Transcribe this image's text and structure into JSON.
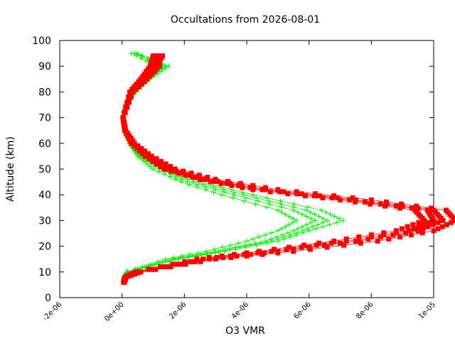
{
  "chart_data": {
    "type": "line",
    "title": "Occultations from 2026-08-01",
    "xlabel": "O3 VMR",
    "ylabel": "Altitude (km)",
    "xlim": [
      -2e-06,
      1e-05
    ],
    "ylim": [
      0,
      100
    ],
    "x_ticks": [
      "-2e-06",
      "0e+00",
      "2e-06",
      "4e-06",
      "6e-06",
      "8e-06",
      "1e-05"
    ],
    "y_ticks": [
      "0",
      "10",
      "20",
      "30",
      "40",
      "50",
      "60",
      "70",
      "80",
      "90",
      "100"
    ],
    "grid": false,
    "series": [
      {
        "marker": "plus",
        "color": "#00ee00",
        "profiles": [
          {
            "x": [
              4e-08,
              6e-08,
              1.5e-07,
              1.6e-06,
              3e-06,
              4.6e-06,
              5.5e-06,
              6.2e-06,
              5.5e-06,
              3.6e-06,
              2.1e-06,
              1.2e-06,
              5.5e-07,
              2.5e-07,
              8e-08,
              2e-08,
              1e-07,
              4e-07,
              8e-07,
              1.3e-06,
              5e-07
            ],
            "y": [
              6,
              8,
              10,
              15,
              18,
              22,
              26,
              30,
              34,
              40,
              45,
              50,
              55,
              60,
              65,
              70,
              75,
              80,
              85,
              90,
              95
            ]
          },
          {
            "x": [
              5e-08,
              8e-08,
              2e-07,
              1.8e-06,
              3.3e-06,
              5e-06,
              6e-06,
              7.1e-06,
              6.4e-06,
              4.2e-06,
              2.5e-06,
              1.4e-06,
              6.5e-07,
              3e-07,
              1e-07,
              3e-08,
              1.2e-07,
              4.5e-07,
              9e-07,
              1.5e-06,
              4e-07
            ],
            "y": [
              6,
              8,
              10,
              15,
              18,
              22,
              26,
              30,
              34,
              40,
              45,
              50,
              55,
              60,
              65,
              70,
              75,
              80,
              85,
              90,
              95
            ]
          },
          {
            "x": [
              4e-08,
              7e-08,
              1.6e-07,
              1.4e-06,
              2.7e-06,
              4e-06,
              5e-06,
              5.6e-06,
              5e-06,
              3.2e-06,
              1.9e-06,
              1e-06,
              5e-07,
              2.2e-07,
              7e-08,
              2e-08,
              9e-08,
              3.5e-07,
              7e-07,
              1.1e-06,
              3e-07
            ],
            "y": [
              6,
              8,
              10,
              15,
              18,
              22,
              26,
              30,
              34,
              40,
              45,
              50,
              55,
              60,
              65,
              70,
              75,
              80,
              85,
              90,
              95
            ]
          },
          {
            "x": [
              6e-08,
              9e-08,
              1.8e-07,
              1.7e-06,
              3.1e-06,
              4.8e-06,
              5.8e-06,
              6.6e-06,
              5.9e-06,
              3.9e-06,
              2.3e-06,
              1.3e-06,
              6e-07,
              2.8e-07,
              9e-08,
              3e-08,
              1.1e-07,
              4e-07,
              8.5e-07,
              1.4e-06,
              4.5e-07
            ],
            "y": [
              6,
              8,
              10,
              15,
              18,
              22,
              26,
              30,
              34,
              40,
              45,
              50,
              55,
              60,
              65,
              70,
              75,
              80,
              85,
              90,
              95
            ]
          }
        ]
      },
      {
        "marker": "square",
        "color": "#ff0000",
        "profiles": [
          {
            "x": [
              5e-08,
              1e-07,
              5e-07,
              2.8e-06,
              5e-06,
              7.5e-06,
              9.5e-06,
              1.03e-05,
              1e-05,
              7.5e-06,
              4.6e-06,
              2.7e-06,
              1.5e-06,
              8.5e-07,
              3.5e-07,
              1e-07,
              3e-08,
              3e-07,
              7e-07,
              1.1e-06,
              1.3e-06
            ],
            "y": [
              6,
              8,
              10,
              15,
              18,
              22,
              26,
              30,
              34,
              38,
              42,
              46,
              50,
              55,
              60,
              65,
              70,
              80,
              85,
              90,
              94
            ]
          },
          {
            "x": [
              6e-08,
              1.2e-07,
              6e-07,
              3e-06,
              5.5e-06,
              8.2e-06,
              1e-05,
              1.07e-05,
              1.04e-05,
              8e-06,
              5e-06,
              3e-06,
              1.7e-06,
              9.5e-07,
              4e-07,
              1.2e-07,
              4e-08,
              3.5e-07,
              8e-07,
              1.2e-06,
              1.2e-06
            ],
            "y": [
              6,
              8,
              10,
              15,
              18,
              22,
              26,
              30,
              34,
              38,
              42,
              46,
              50,
              55,
              60,
              65,
              70,
              80,
              85,
              90,
              94
            ]
          },
          {
            "x": [
              5e-08,
              1e-07,
              4.5e-07,
              2.4e-06,
              4.4e-06,
              6.8e-06,
              8.8e-06,
              9.7e-06,
              9.4e-06,
              7e-06,
              4.2e-06,
              2.5e-06,
              1.35e-06,
              7.5e-07,
              3e-07,
              9e-08,
              3e-08,
              2.5e-07,
              6e-07,
              9e-07,
              1e-06
            ],
            "y": [
              6,
              8,
              10,
              15,
              18,
              22,
              26,
              30,
              34,
              38,
              42,
              46,
              50,
              55,
              60,
              65,
              70,
              80,
              85,
              90,
              94
            ]
          },
          {
            "x": [
              7e-08,
              1.3e-07,
              5.5e-07,
              2.6e-06,
              4.8e-06,
              7.2e-06,
              9.2e-06,
              1e-05,
              9.8e-06,
              7.3e-06,
              4.5e-06,
              2.6e-06,
              1.45e-06,
              8e-07,
              3.3e-07,
              1e-07,
              3e-08,
              2.8e-07,
              6.5e-07,
              1e-06,
              1.1e-06
            ],
            "y": [
              6,
              8,
              10,
              15,
              18,
              22,
              26,
              30,
              34,
              38,
              42,
              46,
              50,
              55,
              60,
              65,
              70,
              80,
              85,
              90,
              94
            ]
          }
        ]
      }
    ]
  }
}
